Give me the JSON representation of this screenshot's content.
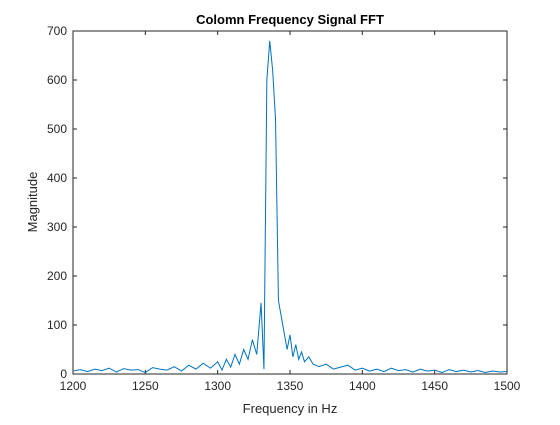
{
  "chart_data": {
    "type": "line",
    "title": "Colomn Frequency Signal FFT",
    "xlabel": "Frequency in Hz",
    "ylabel": "Magnitude",
    "xlim": [
      1200,
      1500
    ],
    "ylim": [
      0,
      700
    ],
    "xticks": [
      1200,
      1250,
      1300,
      1350,
      1400,
      1450,
      1500
    ],
    "yticks": [
      0,
      100,
      200,
      300,
      400,
      500,
      600,
      700
    ],
    "grid": false,
    "legend": "none",
    "line_color": "#0072BD",
    "series": [
      {
        "x": [
          1200,
          1205,
          1210,
          1215,
          1220,
          1225,
          1230,
          1235,
          1240,
          1245,
          1250,
          1255,
          1260,
          1265,
          1270,
          1275,
          1280,
          1285,
          1290,
          1295,
          1300,
          1303,
          1306,
          1309,
          1312,
          1315,
          1318,
          1321,
          1324,
          1327,
          1330,
          1332,
          1334,
          1336,
          1338,
          1340,
          1342,
          1345,
          1348,
          1350,
          1352,
          1354,
          1356,
          1358,
          1360,
          1363,
          1366,
          1370,
          1375,
          1380,
          1385,
          1390,
          1395,
          1400,
          1405,
          1410,
          1415,
          1420,
          1425,
          1430,
          1435,
          1440,
          1445,
          1450,
          1455,
          1460,
          1465,
          1470,
          1475,
          1480,
          1485,
          1490,
          1495,
          1500
        ],
        "y": [
          6,
          9,
          5,
          10,
          7,
          12,
          4,
          11,
          8,
          9,
          3,
          13,
          10,
          8,
          15,
          6,
          18,
          10,
          22,
          12,
          25,
          8,
          30,
          14,
          40,
          20,
          50,
          30,
          70,
          40,
          145,
          10,
          600,
          680,
          620,
          520,
          150,
          100,
          50,
          80,
          35,
          60,
          30,
          45,
          25,
          35,
          20,
          15,
          20,
          10,
          14,
          18,
          8,
          12,
          6,
          10,
          5,
          12,
          7,
          9,
          4,
          10,
          6,
          8,
          3,
          9,
          5,
          8,
          4,
          7,
          3,
          6,
          4,
          5
        ]
      }
    ]
  }
}
